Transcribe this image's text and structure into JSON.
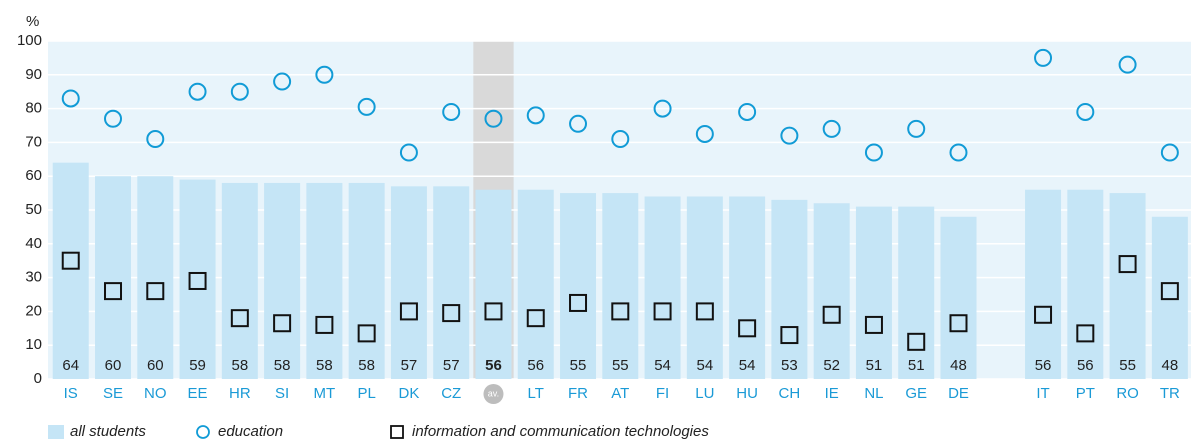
{
  "chart_data": {
    "type": "bar",
    "y_label": "%",
    "categories": [
      "IS",
      "SE",
      "NO",
      "EE",
      "HR",
      "SI",
      "MT",
      "PL",
      "DK",
      "CZ",
      "av.",
      "LT",
      "FR",
      "AT",
      "FI",
      "LU",
      "HU",
      "CH",
      "IE",
      "NL",
      "GE",
      "DE",
      null,
      "IT",
      "PT",
      "RO",
      "TR"
    ],
    "highlight": "av.",
    "series": [
      {
        "name": "all students",
        "marker": "bar",
        "color": "#c5e5f6",
        "values": [
          64,
          60,
          60,
          59,
          58,
          58,
          58,
          58,
          57,
          57,
          56,
          56,
          55,
          55,
          54,
          54,
          54,
          53,
          52,
          51,
          51,
          48,
          null,
          56,
          56,
          55,
          48
        ]
      },
      {
        "name": "education",
        "marker": "circle",
        "color": "#119bd6",
        "values": [
          83,
          77,
          71,
          85,
          85,
          88,
          90,
          80.5,
          67,
          79,
          77,
          78,
          75.5,
          71,
          80,
          72.5,
          79,
          72,
          74,
          67,
          74,
          67,
          null,
          95,
          79,
          93,
          67
        ]
      },
      {
        "name": "information and communication technologies",
        "marker": "square",
        "color": "#111111",
        "values": [
          35,
          26,
          26,
          29,
          18,
          16.5,
          16,
          13.5,
          20,
          19.5,
          20,
          18,
          22.5,
          20,
          20,
          20,
          15,
          13,
          19,
          16,
          11,
          16.5,
          null,
          19,
          13.5,
          34,
          26
        ]
      }
    ],
    "ylim": [
      0,
      100
    ],
    "yticks": [
      0,
      10,
      20,
      30,
      40,
      50,
      60,
      70,
      80,
      90,
      100
    ],
    "grid": true,
    "legend": "bottom"
  }
}
